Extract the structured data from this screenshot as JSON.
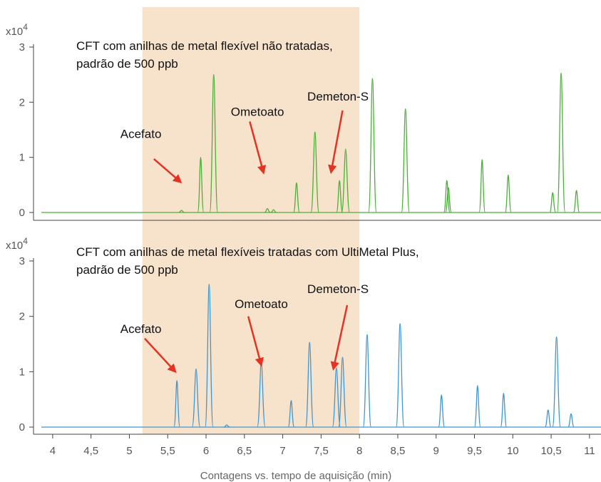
{
  "chart_data": {
    "type": "line",
    "xlabel": "Contagens vs. tempo de aquisição (min)",
    "xlim": [
      3.75,
      11.15
    ],
    "x_ticks": [
      4,
      4.5,
      5,
      5.5,
      6,
      6.5,
      7,
      7.5,
      8,
      8.5,
      9,
      9.5,
      10,
      10.5,
      11
    ],
    "x_tick_labels": [
      "4",
      "4,5",
      "5",
      "5,5",
      "6",
      "6,5",
      "7",
      "7,5",
      "8",
      "8,5",
      "9",
      "9,5",
      "10",
      "10,5",
      "11"
    ],
    "highlight_region": [
      5.17,
      8.0
    ],
    "colors": {
      "top": "#4caf3a",
      "bottom": "#3f96d0",
      "highlight": "#f7e3cc",
      "arrow": "#e53323"
    },
    "panels": [
      {
        "name": "top",
        "ylabel_multiplier": "x10",
        "ylabel_exponent": "4",
        "ylim": [
          0,
          3
        ],
        "y_ticks": [
          0,
          1,
          2,
          3
        ],
        "title_lines": [
          "CFT com anilhas de metal flexível não tratadas,",
          "padrão de 500 ppb"
        ],
        "peaks": [
          {
            "rt": 5.68,
            "height": 0.04
          },
          {
            "rt": 5.93,
            "height": 1.0
          },
          {
            "rt": 6.1,
            "height": 2.5
          },
          {
            "rt": 6.8,
            "height": 0.07
          },
          {
            "rt": 6.88,
            "height": 0.05
          },
          {
            "rt": 7.18,
            "height": 0.54
          },
          {
            "rt": 7.42,
            "height": 1.46
          },
          {
            "rt": 7.74,
            "height": 0.58
          },
          {
            "rt": 7.82,
            "height": 1.15
          },
          {
            "rt": 8.17,
            "height": 2.43
          },
          {
            "rt": 8.6,
            "height": 1.88
          },
          {
            "rt": 9.14,
            "height": 0.58
          },
          {
            "rt": 9.16,
            "height": 0.45
          },
          {
            "rt": 9.6,
            "height": 0.96
          },
          {
            "rt": 9.94,
            "height": 0.68
          },
          {
            "rt": 10.52,
            "height": 0.36
          },
          {
            "rt": 10.63,
            "height": 2.53
          },
          {
            "rt": 10.83,
            "height": 0.4
          }
        ],
        "annotations": [
          {
            "label": "Acefato",
            "text_x": 5.15,
            "text_y": 1.35,
            "arrow_from": [
              5.32,
              0.97
            ],
            "arrow_to": [
              5.67,
              0.55
            ]
          },
          {
            "label": "Ometoato",
            "text_x": 6.67,
            "text_y": 1.75,
            "arrow_from": [
              6.57,
              1.65
            ],
            "arrow_to": [
              6.75,
              0.72
            ]
          },
          {
            "label": "Demeton-S",
            "text_x": 7.72,
            "text_y": 2.03,
            "arrow_from": [
              7.78,
              1.85
            ],
            "arrow_to": [
              7.63,
              0.73
            ]
          }
        ]
      },
      {
        "name": "bottom",
        "ylabel_multiplier": "x10",
        "ylabel_exponent": "4",
        "ylim": [
          0,
          3
        ],
        "y_ticks": [
          0,
          1,
          2,
          3
        ],
        "title_lines": [
          "CFT com anilhas de metal flexíveis tratadas com UltiMetal Plus,",
          "padrão de 500 ppb"
        ],
        "peaks": [
          {
            "rt": 5.62,
            "height": 0.84
          },
          {
            "rt": 5.87,
            "height": 1.05
          },
          {
            "rt": 6.04,
            "height": 2.58
          },
          {
            "rt": 6.27,
            "height": 0.04
          },
          {
            "rt": 6.72,
            "height": 1.18
          },
          {
            "rt": 7.11,
            "height": 0.48
          },
          {
            "rt": 7.35,
            "height": 1.53
          },
          {
            "rt": 7.7,
            "height": 1.07
          },
          {
            "rt": 7.78,
            "height": 1.26
          },
          {
            "rt": 8.1,
            "height": 1.67
          },
          {
            "rt": 8.53,
            "height": 1.87
          },
          {
            "rt": 9.07,
            "height": 0.58
          },
          {
            "rt": 9.54,
            "height": 0.75
          },
          {
            "rt": 9.88,
            "height": 0.61
          },
          {
            "rt": 10.46,
            "height": 0.31
          },
          {
            "rt": 10.57,
            "height": 1.63
          },
          {
            "rt": 10.76,
            "height": 0.24
          }
        ],
        "annotations": [
          {
            "label": "Acefato",
            "text_x": 5.15,
            "text_y": 1.7,
            "arrow_from": [
              5.2,
              1.6
            ],
            "arrow_to": [
              5.6,
              1.0
            ]
          },
          {
            "label": "Ometoato",
            "text_x": 6.72,
            "text_y": 2.15,
            "arrow_from": [
              6.55,
              2.0
            ],
            "arrow_to": [
              6.72,
              1.12
            ]
          },
          {
            "label": "Demeton-S",
            "text_x": 7.72,
            "text_y": 2.42,
            "arrow_from": [
              7.84,
              2.2
            ],
            "arrow_to": [
              7.66,
              1.05
            ]
          }
        ]
      }
    ]
  }
}
